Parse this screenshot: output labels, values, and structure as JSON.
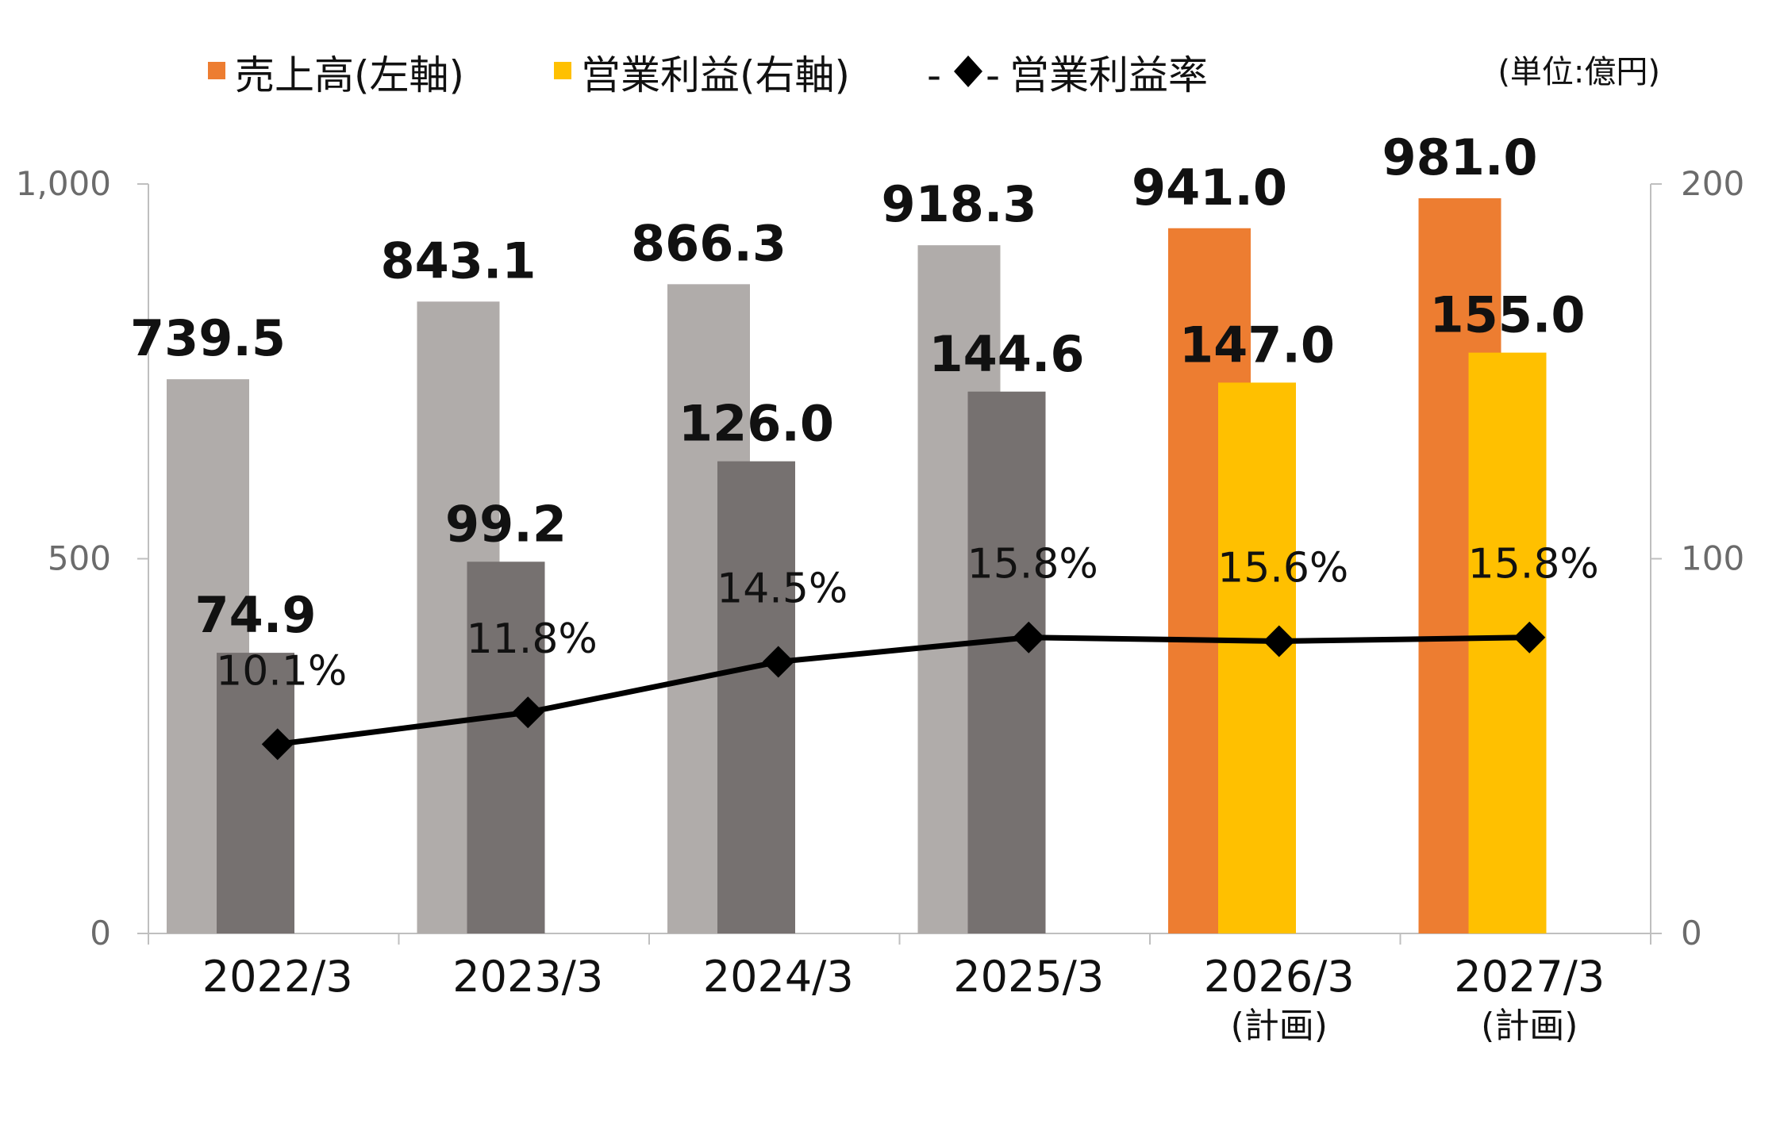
{
  "colors": {
    "sales_actual": "#B0ACAA",
    "profit_actual": "#767170",
    "sales_plan": "#ED7D31",
    "profit_plan": "#FFC000",
    "line": "#000000",
    "axis": "#BFBFBF"
  },
  "legend": {
    "sales": "売上高(左軸)",
    "profit": "営業利益(右軸)",
    "margin": "営業利益率",
    "line_dash": "-"
  },
  "unit_note": "(単位:億円)",
  "chart_data": {
    "type": "bar",
    "categories": [
      "2022/3",
      "2023/3",
      "2024/3",
      "2025/3",
      "2026/3",
      "2027/3"
    ],
    "category_sublabels": [
      "",
      "",
      "",
      "",
      "(計画)",
      "(計画)"
    ],
    "plan_flags": [
      false,
      false,
      false,
      false,
      true,
      true
    ],
    "y_left": {
      "ylim": [
        0,
        1000
      ],
      "ticks": [
        0,
        500,
        1000
      ],
      "tick_labels": [
        "0",
        "500",
        "1,000"
      ]
    },
    "y_right": {
      "ylim": [
        0,
        200
      ],
      "ticks": [
        0,
        100,
        200
      ],
      "tick_labels": [
        "0",
        "100",
        "200"
      ]
    },
    "series": [
      {
        "name": "売上高(左軸)",
        "axis": "left",
        "values": [
          739.5,
          843.1,
          866.3,
          918.3,
          941.0,
          981.0
        ],
        "labels": [
          "739.5",
          "843.1",
          "866.3",
          "918.3",
          "941.0",
          "981.0"
        ]
      },
      {
        "name": "営業利益(右軸)",
        "axis": "right",
        "values": [
          74.9,
          99.2,
          126.0,
          144.6,
          147.0,
          155.0
        ],
        "labels": [
          "74.9",
          "99.2",
          "126.0",
          "144.6",
          "147.0",
          "155.0"
        ]
      },
      {
        "name": "営業利益率",
        "type": "line",
        "marker": "diamond",
        "values": [
          10.1,
          11.8,
          14.5,
          15.8,
          15.6,
          15.8
        ],
        "labels": [
          "10.1%",
          "11.8%",
          "14.5%",
          "15.8%",
          "15.6%",
          "15.8%"
        ]
      }
    ],
    "grid": false,
    "legend_position": "top"
  }
}
